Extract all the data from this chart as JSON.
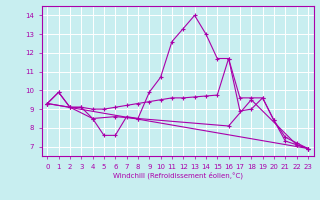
{
  "xlabel": "Windchill (Refroidissement éolien,°C)",
  "xlim": [
    -0.5,
    23.5
  ],
  "ylim": [
    6.5,
    14.5
  ],
  "yticks": [
    7,
    8,
    9,
    10,
    11,
    12,
    13,
    14
  ],
  "xticks": [
    0,
    1,
    2,
    3,
    4,
    5,
    6,
    7,
    8,
    9,
    10,
    11,
    12,
    13,
    14,
    15,
    16,
    17,
    18,
    19,
    20,
    21,
    22,
    23
  ],
  "bg_color": "#c8eef0",
  "line_color": "#aa00aa",
  "grid_color": "#ffffff",
  "series": [
    {
      "x": [
        0,
        1,
        2,
        3,
        4,
        5,
        6,
        7,
        8,
        9,
        10,
        11,
        12,
        13,
        14,
        15,
        16,
        17,
        18,
        19,
        20,
        21,
        22,
        23
      ],
      "y": [
        9.3,
        9.9,
        9.1,
        9.1,
        8.5,
        7.6,
        7.6,
        8.6,
        8.5,
        9.9,
        10.7,
        12.6,
        13.3,
        14.0,
        13.0,
        11.7,
        11.7,
        8.9,
        9.0,
        9.6,
        8.4,
        7.3,
        7.1,
        6.9
      ]
    },
    {
      "x": [
        0,
        1,
        2,
        3,
        4,
        5,
        6,
        7,
        8,
        9,
        10,
        11,
        12,
        13,
        14,
        15,
        16,
        17,
        18,
        19,
        20,
        21,
        22,
        23
      ],
      "y": [
        9.3,
        9.9,
        9.1,
        9.1,
        9.0,
        9.0,
        9.1,
        9.2,
        9.3,
        9.4,
        9.5,
        9.6,
        9.6,
        9.65,
        9.7,
        9.75,
        11.7,
        9.6,
        9.6,
        9.6,
        8.4,
        7.5,
        7.2,
        6.9
      ]
    },
    {
      "x": [
        0,
        2,
        4,
        6,
        8,
        16,
        18,
        22,
        23
      ],
      "y": [
        9.3,
        9.1,
        8.5,
        8.6,
        8.5,
        8.1,
        9.5,
        7.1,
        6.9
      ]
    },
    {
      "x": [
        0,
        23
      ],
      "y": [
        9.3,
        6.9
      ]
    }
  ]
}
